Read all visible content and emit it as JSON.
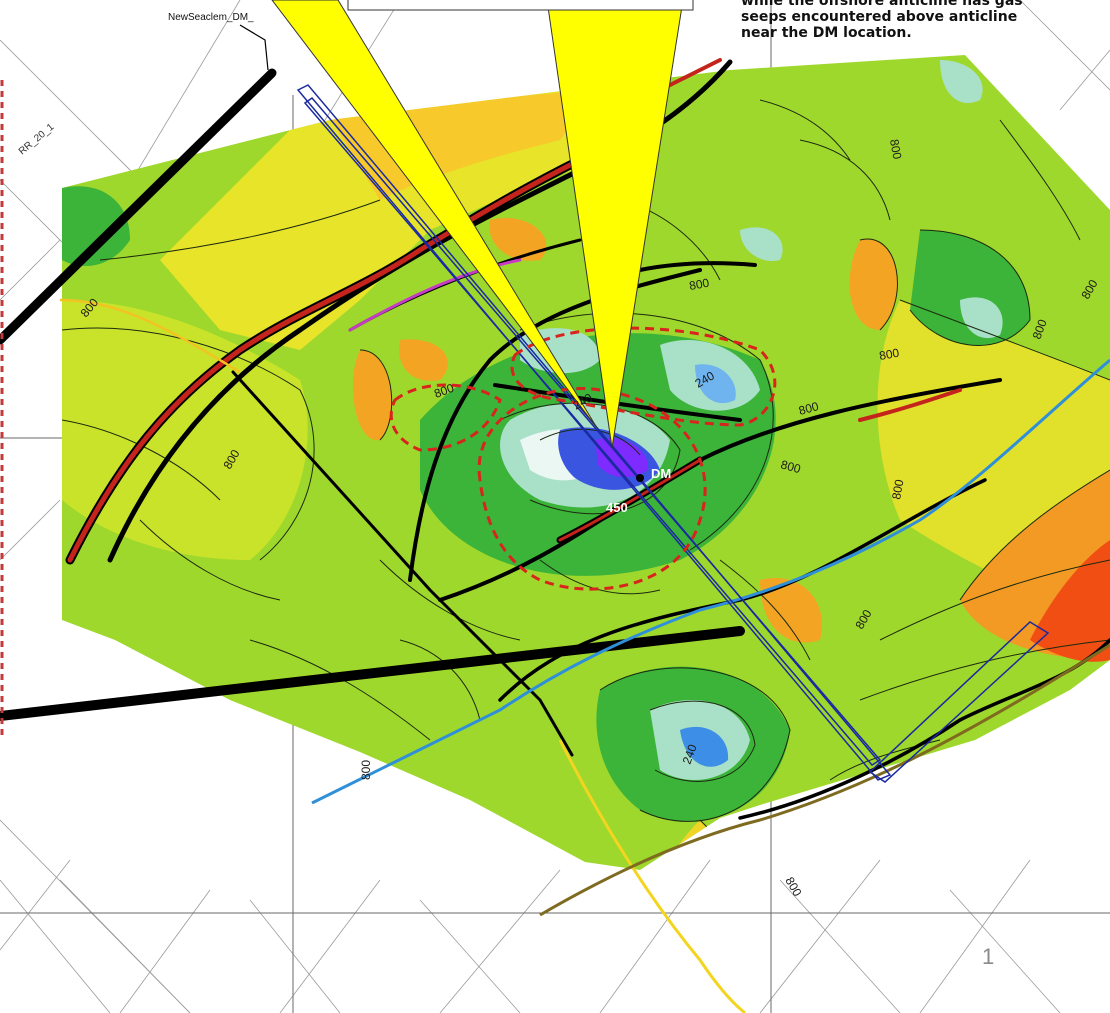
{
  "map": {
    "line_label": "NewSeaclem_DM_",
    "edge_label": "RR_20_1",
    "well_label": "DM",
    "annotation_lines": [
      "while the offshore anticline has gas",
      "seeps encountered  above anticline",
      "near the DM location."
    ],
    "contour_labels": [
      "800",
      "800",
      "800",
      "800",
      "800",
      "800",
      "800",
      "800",
      "800",
      "800",
      "800",
      "800",
      "800",
      "800",
      "240",
      "240",
      "240",
      "450"
    ],
    "page_number": "1",
    "colors": {
      "low": "#7ec92e",
      "mid": "#c7e02b",
      "high": "#f6c621",
      "peak": "#f03a0c",
      "depression": "#6a3bd9",
      "fault": "#000000",
      "thrust": "#c4241c",
      "seismic_line": "#1a2aa0",
      "river": "#2f8fd8",
      "callout": "#ffff00",
      "prospect_outline": "#d9231d"
    }
  }
}
